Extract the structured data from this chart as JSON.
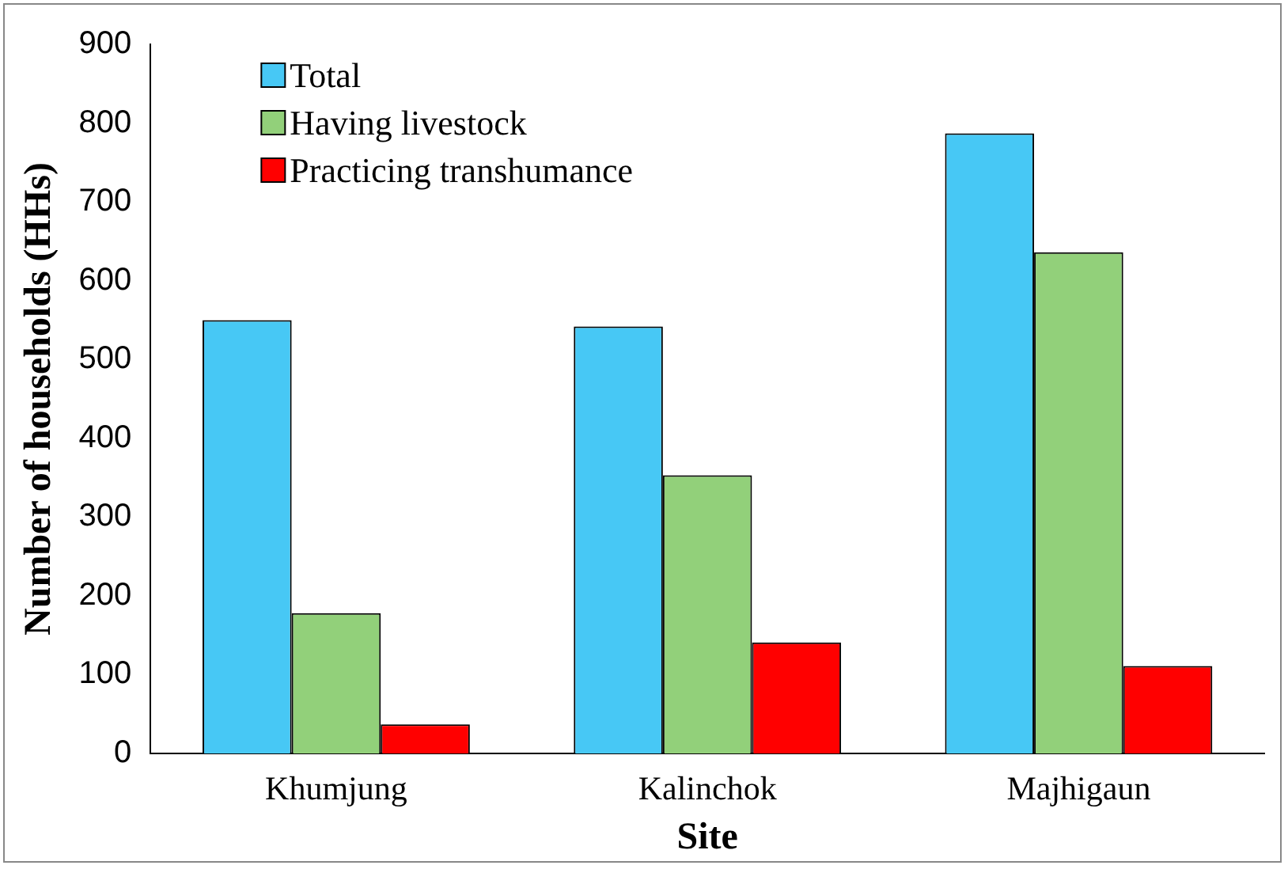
{
  "chart_data": {
    "type": "bar",
    "xlabel": "Site",
    "ylabel": "Number of households (HHs)",
    "categories": [
      "Khumjung",
      "Kalinchok",
      "Majhigaun"
    ],
    "series": [
      {
        "name": "Total",
        "color": "#47c8f5",
        "values": [
          550,
          542,
          787
        ]
      },
      {
        "name": "Having livestock",
        "color": "#92d07a",
        "values": [
          178,
          353,
          636
        ]
      },
      {
        "name": "Practicing transhumance",
        "color": "#ff0000",
        "values": [
          37,
          141,
          111
        ]
      }
    ],
    "ylim": [
      0,
      900
    ],
    "yticks": [
      0,
      100,
      200,
      300,
      400,
      500,
      600,
      700,
      800,
      900
    ],
    "grid": false,
    "legend": "top left"
  }
}
